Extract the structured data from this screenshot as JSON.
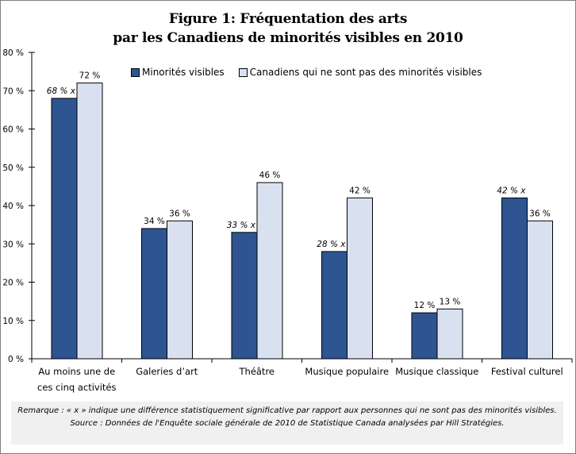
{
  "title_line1": "Figure 1:  Fréquentation des arts",
  "title_line2": "par les Canadiens de minorités visibles en 2010",
  "note": "Remarque : « x » indique une différence statistiquement  significative par rapport aux personnes qui ne sont pas des minorités visibles. Source : Données de l'Enquête sociale générale de 2010 de Statistique  Canada analysées par Hill Stratégies.",
  "chart_data": {
    "type": "bar",
    "title": "Figure 1:  Fréquentation des arts par les Canadiens de minorités visibles en 2010",
    "xlabel": "",
    "ylabel": "",
    "ylim": [
      0,
      80
    ],
    "yticks": [
      0,
      10,
      20,
      30,
      40,
      50,
      60,
      70,
      80
    ],
    "ytick_labels": [
      "0 %",
      "10 %",
      "20 %",
      "30 %",
      "40 %",
      "50 %",
      "60 %",
      "70 %",
      "80 %"
    ],
    "grid": false,
    "legend_position": "top",
    "categories": [
      [
        "Au moins une de",
        "ces cinq activités"
      ],
      [
        "Galeries d’art"
      ],
      [
        "Théâtre"
      ],
      [
        "Musique populaire"
      ],
      [
        "Musique classique"
      ],
      [
        "Festival culturel"
      ]
    ],
    "series": [
      {
        "name": "Minorités visibles",
        "color": "#2e5592",
        "values": [
          68,
          34,
          33,
          28,
          12,
          42
        ],
        "labels": [
          "68 % x",
          "34 %",
          "33 % x",
          "28 % x",
          "12 %",
          "42 % x"
        ],
        "significant": [
          true,
          false,
          true,
          true,
          false,
          true
        ]
      },
      {
        "name": "Canadiens qui ne sont pas des minorités visibles",
        "color": "#d9e1f1",
        "values": [
          72,
          36,
          46,
          42,
          13,
          36
        ],
        "labels": [
          "72 %",
          "36 %",
          "46 %",
          "42 %",
          "13 %",
          "36 %"
        ],
        "significant": [
          false,
          false,
          false,
          false,
          false,
          false
        ]
      }
    ]
  }
}
